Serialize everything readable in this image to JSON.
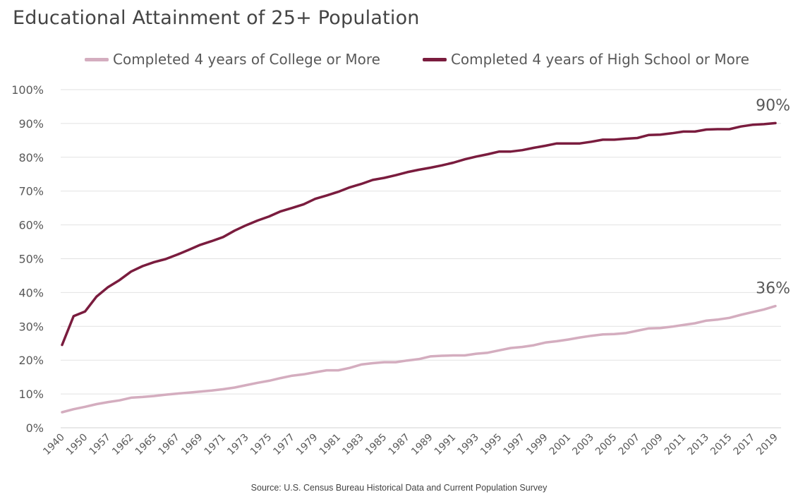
{
  "chart_data": {
    "type": "line",
    "title": "Educational Attainment of 25+ Population",
    "xlabel": "",
    "ylabel": "",
    "ylim": [
      0,
      100
    ],
    "y_ticks": [
      "0%",
      "10%",
      "20%",
      "30%",
      "40%",
      "50%",
      "60%",
      "70%",
      "80%",
      "90%",
      "100%"
    ],
    "x_tick_labels": [
      "1940",
      "1950",
      "1957",
      "1962",
      "1965",
      "1967",
      "1969",
      "1971",
      "1973",
      "1975",
      "1977",
      "1979",
      "1981",
      "1983",
      "1985",
      "1987",
      "1989",
      "1991",
      "1993",
      "1995",
      "1997",
      "1999",
      "2001",
      "2003",
      "2005",
      "2007",
      "2009",
      "2011",
      "2013",
      "2015",
      "2017",
      "2019"
    ],
    "grid": "horizontal",
    "legend_position": "top",
    "series": [
      {
        "name": "Completed 4 years of College or More",
        "color": "#d4adbf",
        "values": [
          4.6,
          5.5,
          6.2,
          7.0,
          7.6,
          8.1,
          8.9,
          9.1,
          9.4,
          9.8,
          10.1,
          10.4,
          10.7,
          11.0,
          11.4,
          11.9,
          12.6,
          13.3,
          13.9,
          14.7,
          15.4,
          15.8,
          16.4,
          17.0,
          17.0,
          17.7,
          18.7,
          19.1,
          19.4,
          19.4,
          19.9,
          20.3,
          21.1,
          21.3,
          21.4,
          21.4,
          21.9,
          22.2,
          22.9,
          23.6,
          23.9,
          24.4,
          25.2,
          25.6,
          26.1,
          26.7,
          27.2,
          27.6,
          27.7,
          28.0,
          28.7,
          29.4,
          29.5,
          29.9,
          30.4,
          30.9,
          31.7,
          32.0,
          32.5,
          33.4,
          34.2,
          35.0,
          36.0
        ],
        "end_label": "36%"
      },
      {
        "name": "Completed 4 years of High School or More",
        "color": "#7a1c3e",
        "values": [
          24.5,
          33.0,
          34.4,
          38.8,
          41.6,
          43.7,
          46.2,
          47.8,
          49.0,
          49.9,
          51.2,
          52.6,
          54.1,
          55.2,
          56.4,
          58.3,
          59.9,
          61.3,
          62.5,
          64.0,
          65.0,
          66.1,
          67.7,
          68.7,
          69.8,
          71.1,
          72.1,
          73.3,
          73.9,
          74.7,
          75.6,
          76.3,
          76.9,
          77.6,
          78.4,
          79.4,
          80.2,
          80.9,
          81.7,
          81.7,
          82.1,
          82.8,
          83.4,
          84.1,
          84.1,
          84.1,
          84.6,
          85.2,
          85.2,
          85.5,
          85.7,
          86.6,
          86.7,
          87.1,
          87.6,
          87.6,
          88.2,
          88.3,
          88.3,
          89.1,
          89.6,
          89.8,
          90.1
        ],
        "end_label": "90%"
      }
    ]
  },
  "footer": {
    "source": "Source: U.S. Census Bureau Historical Data and Current Population Survey"
  }
}
